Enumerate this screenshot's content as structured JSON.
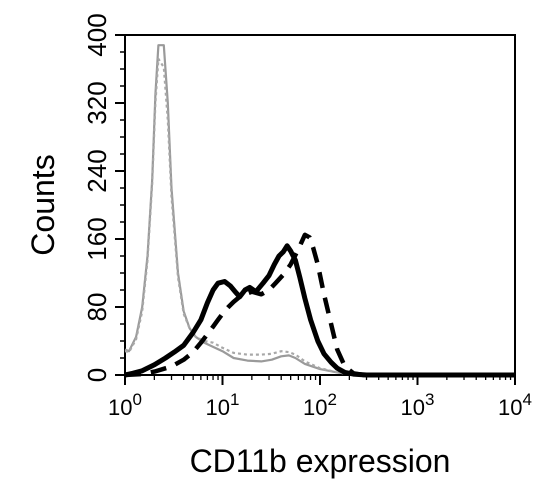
{
  "chart_data": {
    "type": "line",
    "xlabel": "CD11b expression",
    "ylabel": "Counts",
    "xscale": "log",
    "xlim": [
      1,
      10000
    ],
    "ylim": [
      0,
      400
    ],
    "x_ticks": [
      {
        "value": 1,
        "base": "10",
        "exp": "0"
      },
      {
        "value": 10,
        "base": "10",
        "exp": "1"
      },
      {
        "value": 100,
        "base": "10",
        "exp": "2"
      },
      {
        "value": 1000,
        "base": "10",
        "exp": "3"
      },
      {
        "value": 10000,
        "base": "10",
        "exp": "4"
      }
    ],
    "y_ticks": [
      0,
      80,
      160,
      240,
      320,
      400
    ],
    "series": [
      {
        "style": "gray-solid",
        "color": "#9a9a9a",
        "points": [
          [
            1.0,
            30
          ],
          [
            1.1,
            28
          ],
          [
            1.3,
            45
          ],
          [
            1.5,
            80
          ],
          [
            1.7,
            140
          ],
          [
            1.9,
            230
          ],
          [
            2.05,
            330
          ],
          [
            2.2,
            388
          ],
          [
            2.5,
            388
          ],
          [
            2.75,
            320
          ],
          [
            3.0,
            220
          ],
          [
            3.5,
            120
          ],
          [
            4.0,
            75
          ],
          [
            4.6,
            55
          ],
          [
            5.3,
            45
          ],
          [
            6.5,
            38
          ],
          [
            8,
            33
          ],
          [
            10,
            28
          ],
          [
            13,
            20
          ],
          [
            18,
            17
          ],
          [
            25,
            16
          ],
          [
            32,
            18
          ],
          [
            40,
            22
          ],
          [
            48,
            23
          ],
          [
            56,
            20
          ],
          [
            70,
            13
          ],
          [
            100,
            7
          ],
          [
            150,
            3
          ],
          [
            200,
            1
          ],
          [
            300,
            0
          ],
          [
            10000,
            0
          ]
        ]
      },
      {
        "style": "gray-dotted",
        "color": "#a8a8a8",
        "points": [
          [
            1.0,
            28
          ],
          [
            1.1,
            27
          ],
          [
            1.3,
            42
          ],
          [
            1.5,
            75
          ],
          [
            1.7,
            135
          ],
          [
            1.9,
            225
          ],
          [
            2.05,
            320
          ],
          [
            2.2,
            372
          ],
          [
            2.5,
            362
          ],
          [
            2.75,
            300
          ],
          [
            3.0,
            210
          ],
          [
            3.5,
            115
          ],
          [
            4.0,
            72
          ],
          [
            4.6,
            55
          ],
          [
            5.3,
            45
          ],
          [
            6.5,
            40
          ],
          [
            8,
            38
          ],
          [
            10,
            32
          ],
          [
            13,
            26
          ],
          [
            18,
            24
          ],
          [
            25,
            24
          ],
          [
            32,
            25
          ],
          [
            40,
            28
          ],
          [
            48,
            27
          ],
          [
            56,
            24
          ],
          [
            70,
            16
          ],
          [
            100,
            8
          ],
          [
            150,
            3
          ],
          [
            250,
            0
          ],
          [
            10000,
            0
          ]
        ]
      },
      {
        "style": "black-solid",
        "color": "#000000",
        "points": [
          [
            1.0,
            0
          ],
          [
            1.2,
            2
          ],
          [
            1.5,
            5
          ],
          [
            2.0,
            12
          ],
          [
            2.6,
            20
          ],
          [
            3.2,
            27
          ],
          [
            4.0,
            35
          ],
          [
            5.0,
            50
          ],
          [
            6.0,
            65
          ],
          [
            7.0,
            85
          ],
          [
            8.0,
            100
          ],
          [
            9.0,
            108
          ],
          [
            10.5,
            110
          ],
          [
            12,
            105
          ],
          [
            13.5,
            98
          ],
          [
            15,
            92
          ],
          [
            17,
            100
          ],
          [
            19,
            103
          ],
          [
            22,
            98
          ],
          [
            26,
            108
          ],
          [
            30,
            117
          ],
          [
            34,
            130
          ],
          [
            38,
            140
          ],
          [
            42,
            145
          ],
          [
            46,
            152
          ],
          [
            50,
            146
          ],
          [
            56,
            135
          ],
          [
            62,
            115
          ],
          [
            70,
            90
          ],
          [
            80,
            65
          ],
          [
            95,
            40
          ],
          [
            110,
            25
          ],
          [
            130,
            15
          ],
          [
            150,
            8
          ],
          [
            180,
            3
          ],
          [
            220,
            1
          ],
          [
            300,
            0
          ],
          [
            10000,
            0
          ]
        ]
      },
      {
        "style": "black-dashed",
        "color": "#000000",
        "points": [
          [
            1.0,
            0
          ],
          [
            1.5,
            1
          ],
          [
            2.0,
            4
          ],
          [
            3.0,
            10
          ],
          [
            4.0,
            18
          ],
          [
            5.0,
            27
          ],
          [
            6.0,
            38
          ],
          [
            7.0,
            48
          ],
          [
            8.0,
            57
          ],
          [
            9.0,
            65
          ],
          [
            10,
            72
          ],
          [
            11.5,
            80
          ],
          [
            13,
            86
          ],
          [
            15,
            92
          ],
          [
            17,
            95
          ],
          [
            20,
            98
          ],
          [
            25,
            95
          ],
          [
            30,
            100
          ],
          [
            35,
            108
          ],
          [
            42,
            118
          ],
          [
            50,
            130
          ],
          [
            60,
            148
          ],
          [
            70,
            165
          ],
          [
            78,
            162
          ],
          [
            85,
            150
          ],
          [
            95,
            130
          ],
          [
            110,
            95
          ],
          [
            130,
            60
          ],
          [
            150,
            30
          ],
          [
            180,
            10
          ],
          [
            220,
            2
          ],
          [
            280,
            0
          ],
          [
            10000,
            0
          ]
        ]
      }
    ]
  }
}
